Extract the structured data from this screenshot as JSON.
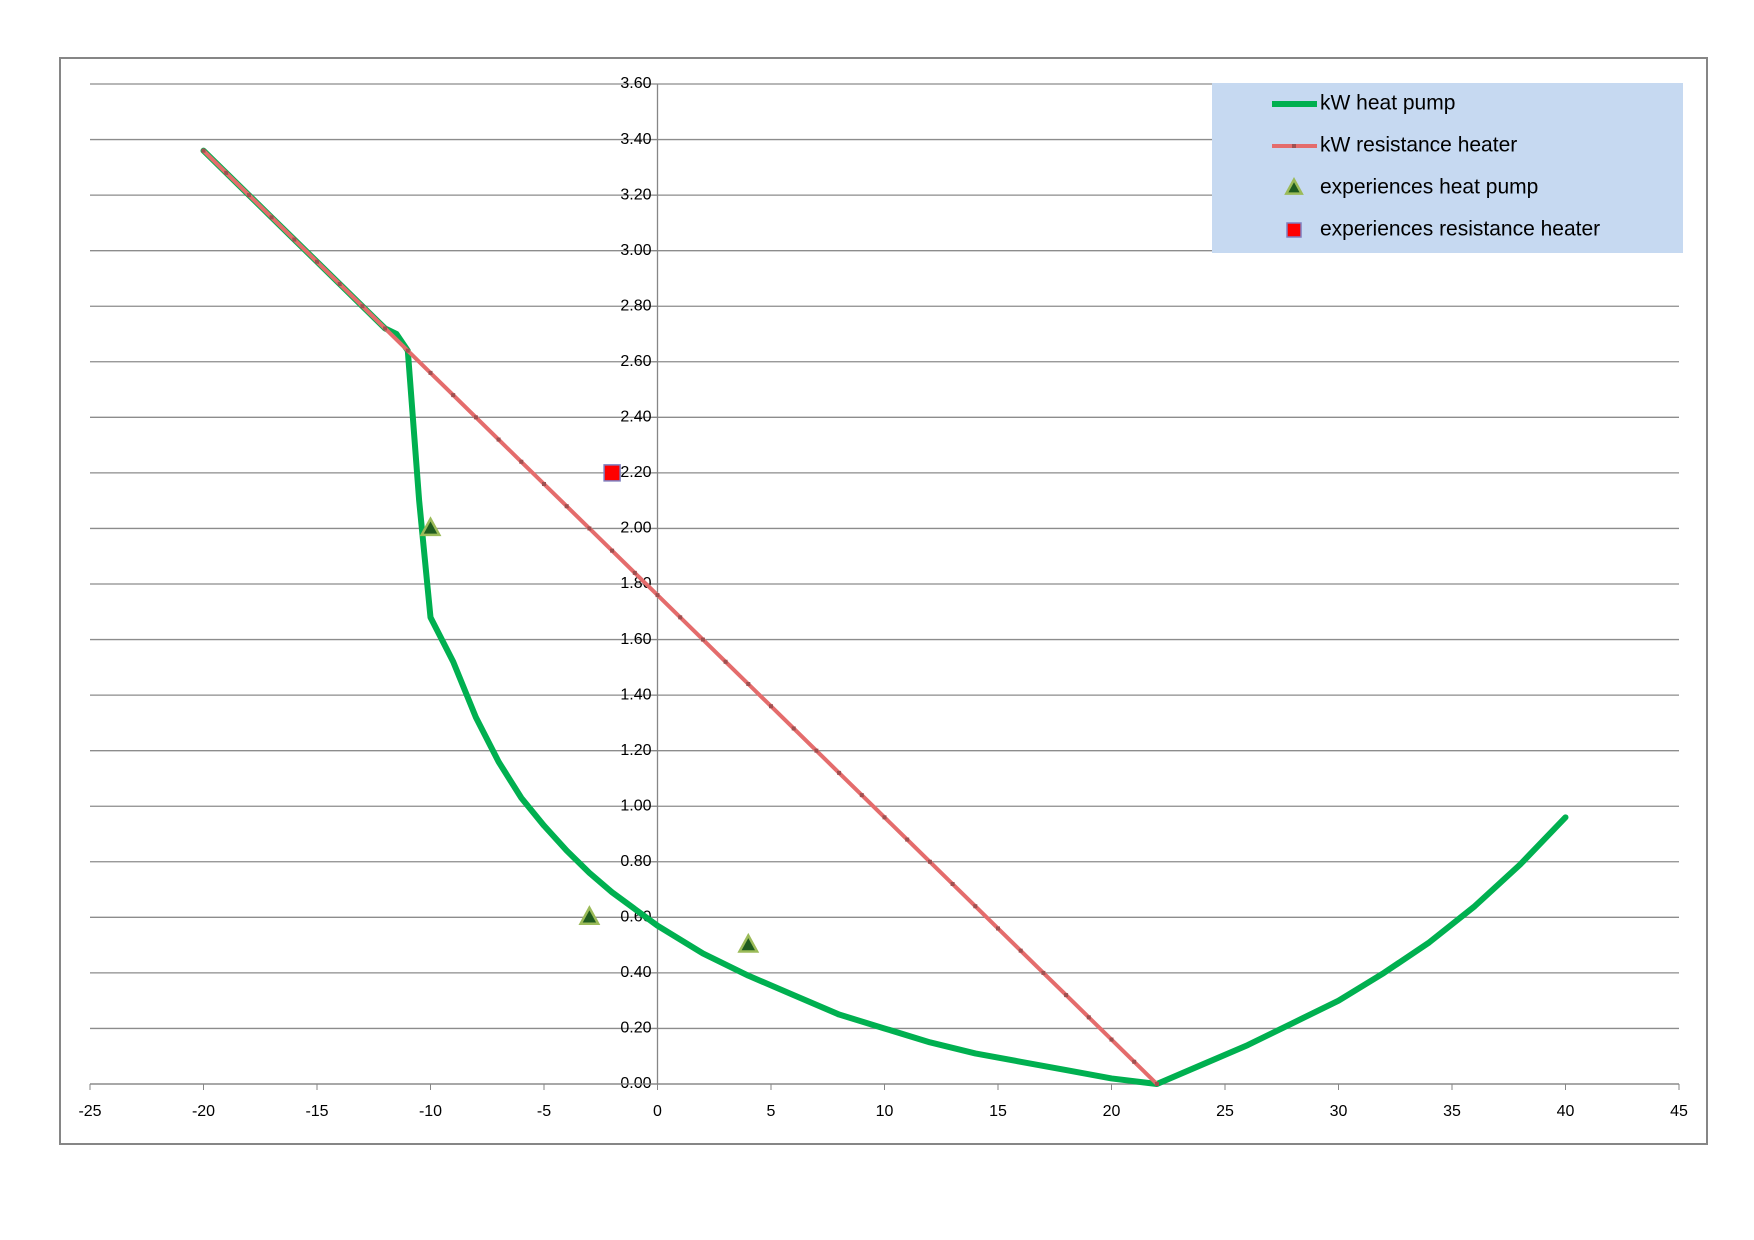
{
  "chart_data": {
    "type": "line",
    "xlim": [
      -25,
      45
    ],
    "xticks": [
      -25,
      -20,
      -15,
      -10,
      -5,
      0,
      5,
      10,
      15,
      20,
      25,
      30,
      35,
      40,
      45
    ],
    "ylim": [
      0,
      3.6
    ],
    "yticks": [
      {
        "value": 0,
        "label": "0.00"
      },
      {
        "value": 0.2,
        "label": "0.20"
      },
      {
        "value": 0.4,
        "label": "0.40"
      },
      {
        "value": 0.6,
        "label": "0.60"
      },
      {
        "value": 0.8,
        "label": "0.80"
      },
      {
        "value": 1,
        "label": "1.00"
      },
      {
        "value": 1.2,
        "label": "1.20"
      },
      {
        "value": 1.4,
        "label": "1.40"
      },
      {
        "value": 1.6,
        "label": "1.60"
      },
      {
        "value": 1.8,
        "label": "1.80"
      },
      {
        "value": 2,
        "label": "2.00"
      },
      {
        "value": 2.2,
        "label": "2.20"
      },
      {
        "value": 2.4,
        "label": "2.40"
      },
      {
        "value": 2.6,
        "label": "2.60"
      },
      {
        "value": 2.8,
        "label": "2.80"
      },
      {
        "value": 3,
        "label": "3.00"
      },
      {
        "value": 3.2,
        "label": "3.20"
      },
      {
        "value": 3.4,
        "label": "3.40"
      },
      {
        "value": 3.6,
        "label": "3.60"
      }
    ],
    "grid": true,
    "legend": "upper right",
    "series": [
      {
        "name": "kW heat pump",
        "color": "#00b050",
        "line": true,
        "marker": "none",
        "x": [
          -20,
          -19,
          -18,
          -17,
          -16,
          -15,
          -14,
          -13,
          -12,
          -11.5,
          -11,
          -10.5,
          -10,
          -9,
          -8,
          -7,
          -6,
          -5,
          -4,
          -3,
          -2,
          -1,
          0,
          2,
          4,
          6,
          8,
          10,
          12,
          14,
          16,
          18,
          20,
          22,
          24,
          26,
          28,
          30,
          32,
          34,
          36,
          38,
          40
        ],
        "values": [
          3.36,
          3.28,
          3.2,
          3.12,
          3.04,
          2.96,
          2.88,
          2.8,
          2.72,
          2.7,
          2.64,
          2.1,
          1.68,
          1.52,
          1.32,
          1.16,
          1.03,
          0.93,
          0.84,
          0.76,
          0.69,
          0.63,
          0.57,
          0.47,
          0.39,
          0.32,
          0.25,
          0.2,
          0.15,
          0.11,
          0.08,
          0.05,
          0.02,
          0,
          0.07,
          0.14,
          0.22,
          0.3,
          0.4,
          0.51,
          0.64,
          0.79,
          0.96
        ]
      },
      {
        "name": "kW resistance heater",
        "color": "#e46c6c",
        "line": true,
        "marker": "square",
        "edge_color": "#a05050",
        "x": [
          -20,
          -19,
          -18,
          -17,
          -16,
          -15,
          -14,
          -13,
          -12,
          -11,
          -10,
          -9,
          -8,
          -7,
          -6,
          -5,
          -4,
          -3,
          -2,
          -1,
          0,
          1,
          2,
          3,
          4,
          5,
          6,
          7,
          8,
          9,
          10,
          11,
          12,
          13,
          14,
          15,
          16,
          17,
          18,
          19,
          20,
          21,
          22
        ],
        "values": [
          3.36,
          3.28,
          3.2,
          3.12,
          3.04,
          2.96,
          2.88,
          2.8,
          2.72,
          2.64,
          2.56,
          2.48,
          2.4,
          2.32,
          2.24,
          2.16,
          2.08,
          2,
          1.92,
          1.84,
          1.76,
          1.68,
          1.6,
          1.52,
          1.44,
          1.36,
          1.28,
          1.2,
          1.12,
          1.04,
          0.96,
          0.88,
          0.8,
          0.72,
          0.64,
          0.56,
          0.48,
          0.4,
          0.32,
          0.24,
          0.16,
          0.08,
          0
        ]
      },
      {
        "name": "experiences heat pump",
        "color": "#1f5c1f",
        "line": false,
        "marker": "triangle",
        "edge_color": "#9bbb59",
        "x": [
          -10,
          -3,
          4
        ],
        "values": [
          2,
          0.6,
          0.5
        ]
      },
      {
        "name": "experiences resistance heater",
        "color": "#ff0000",
        "line": false,
        "marker": "square",
        "edge_color": "#7f7fbf",
        "x": [
          -2
        ],
        "values": [
          2.2
        ]
      }
    ]
  }
}
